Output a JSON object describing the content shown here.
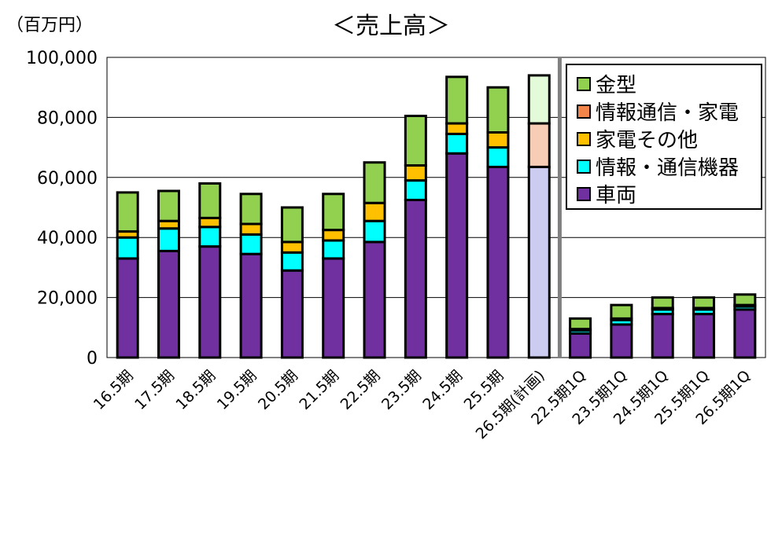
{
  "chart_data": {
    "type": "bar",
    "stacked": true,
    "title": "＜売上高＞",
    "unit_label": "（百万円）",
    "ylim": [
      0,
      100000
    ],
    "y_ticks": [
      "0",
      "20,000",
      "40,000",
      "60,000",
      "80,000",
      "100,000"
    ],
    "grid": true,
    "legend_position": "top-right",
    "categories": [
      "16.5期",
      "17.5期",
      "18.5期",
      "19.5期",
      "20.5期",
      "21.5期",
      "22.5期",
      "23.5期",
      "24.5期",
      "25.5期",
      "26.5期(計画)",
      "22.5期1Q",
      "23.5期1Q",
      "24.5期1Q",
      "25.5期1Q",
      "26.5期1Q"
    ],
    "series": [
      {
        "name": "車両",
        "color": "#7030A0",
        "plan_color": "#CCCCF0",
        "values": [
          33000,
          35500,
          37000,
          34500,
          29000,
          33000,
          38500,
          52500,
          68000,
          63500,
          63500,
          8000,
          11000,
          14500,
          14500,
          16000
        ]
      },
      {
        "name": "情報・通信機器",
        "color": "#00FFFF",
        "plan_color": "#DFF7F7",
        "values": [
          7000,
          7500,
          6500,
          6500,
          6000,
          6000,
          7000,
          6500,
          6500,
          6500,
          0,
          1000,
          1500,
          1500,
          1500,
          1000
        ]
      },
      {
        "name": "家電その他",
        "color": "#FFC000",
        "plan_color": "#FFEBC0",
        "values": [
          2000,
          2500,
          3000,
          3500,
          3500,
          3500,
          6000,
          5000,
          3500,
          5000,
          0,
          500,
          500,
          500,
          500,
          500
        ]
      },
      {
        "name": "情報通信・家電",
        "color": "#F4854A",
        "plan_color": "#F7CDB5",
        "values": [
          0,
          0,
          0,
          0,
          0,
          0,
          0,
          0,
          0,
          0,
          14500,
          0,
          0,
          0,
          0,
          0
        ]
      },
      {
        "name": "金型",
        "color": "#92D050",
        "plan_color": "#E3FBD8",
        "values": [
          13000,
          10000,
          11500,
          10000,
          11500,
          12000,
          13500,
          16500,
          15500,
          15000,
          16000,
          3500,
          4500,
          3500,
          3500,
          3500
        ]
      }
    ],
    "plan_index": 10,
    "separator_after_index": 10,
    "legend_order": [
      "金型",
      "情報通信・家電",
      "家電その他",
      "情報・通信機器",
      "車両"
    ]
  }
}
